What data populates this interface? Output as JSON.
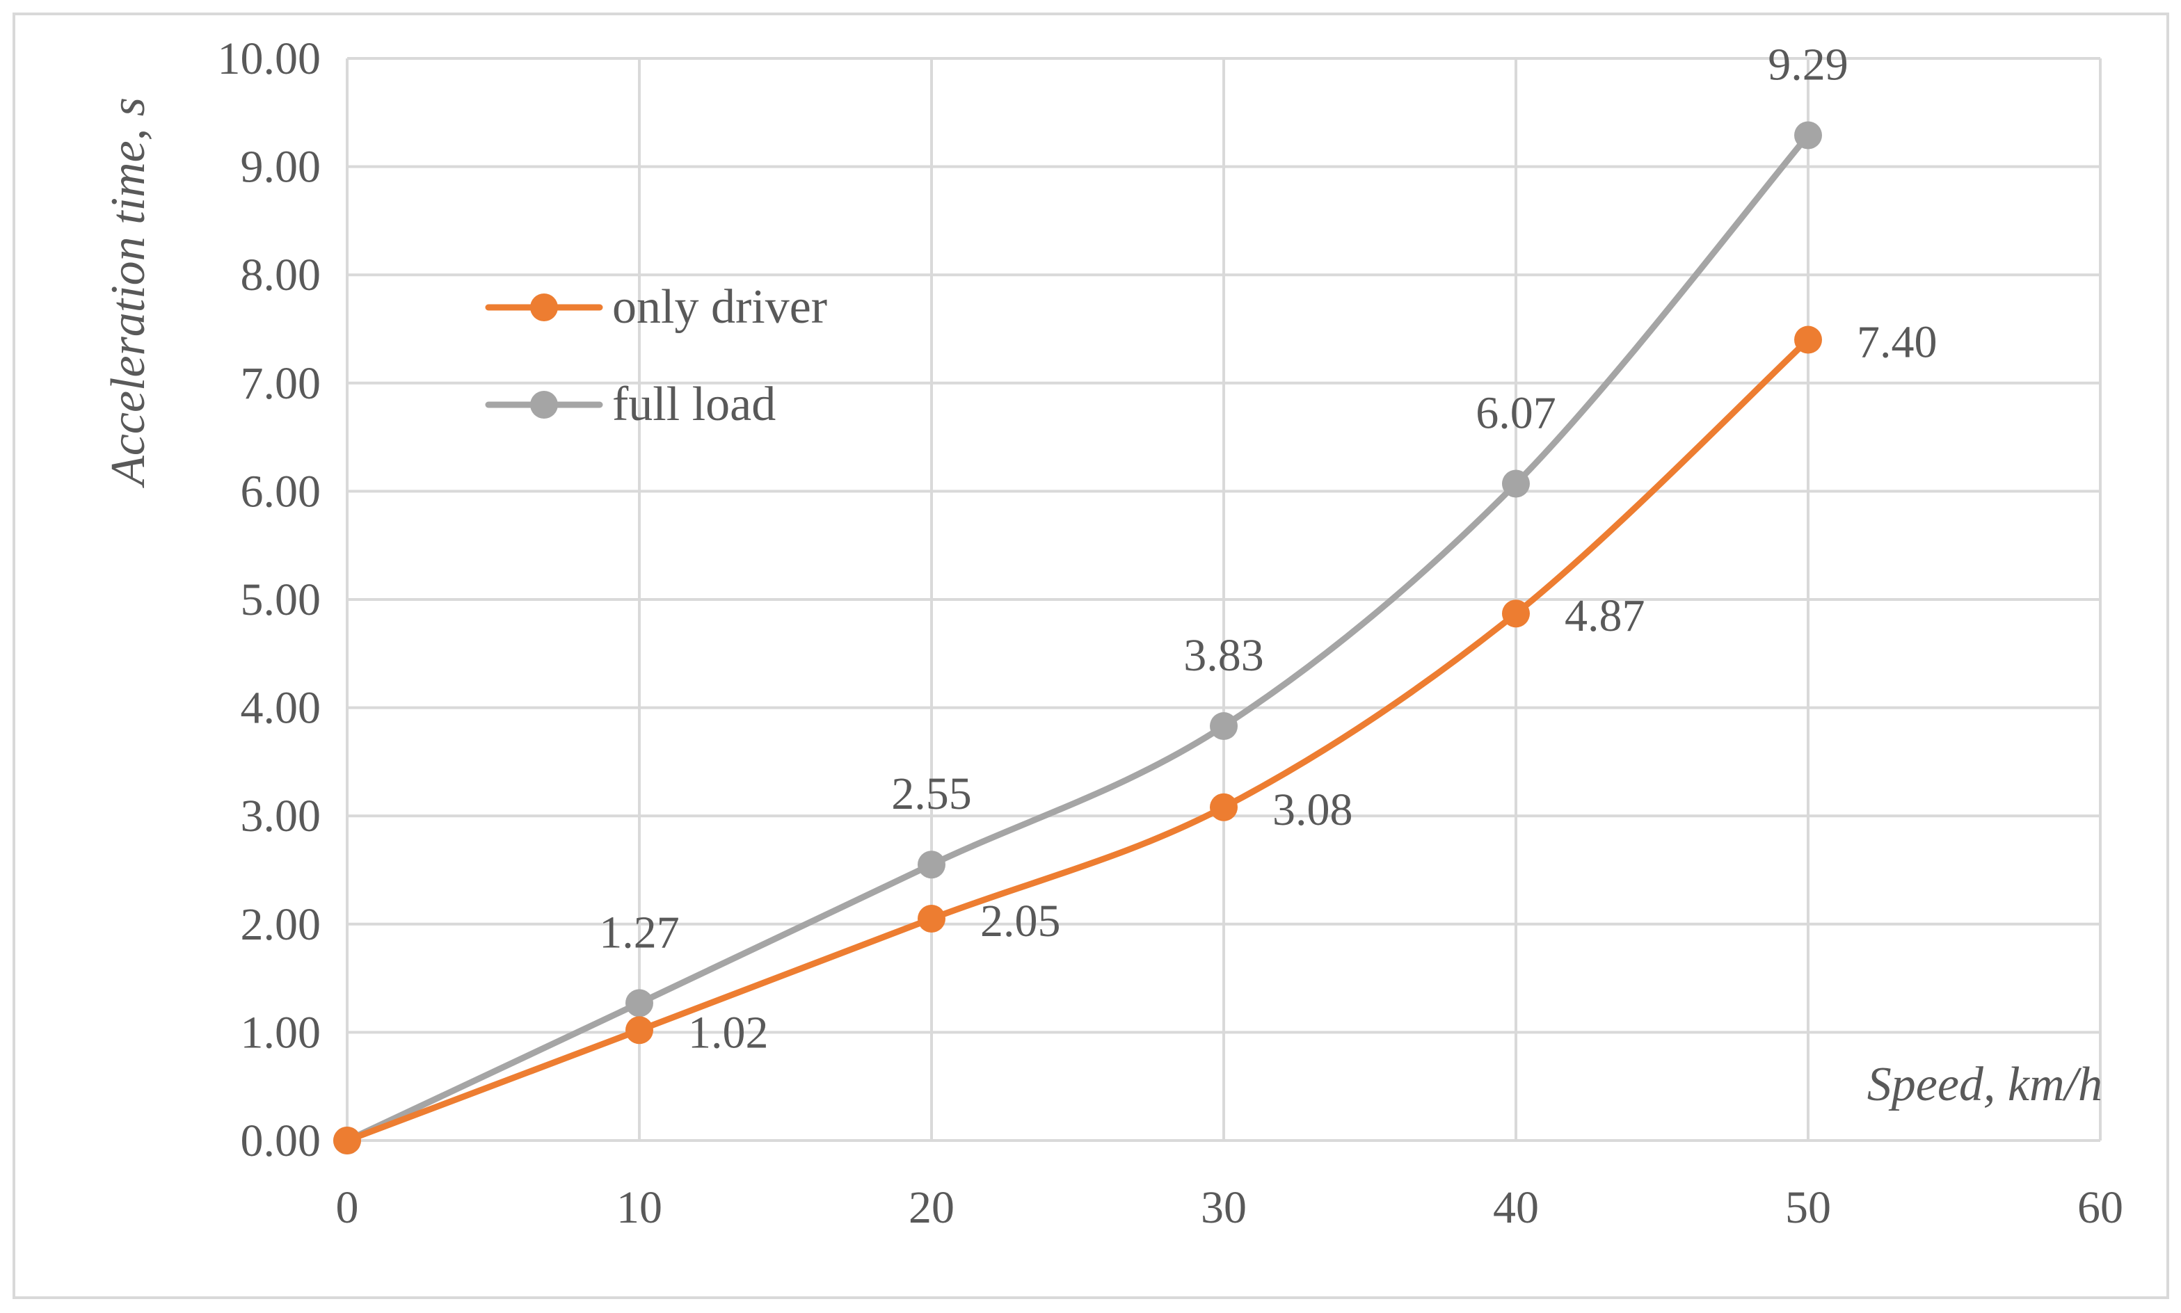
{
  "chart_data": {
    "type": "line",
    "smooth": true,
    "xlabel": "Speed, km/h",
    "ylabel": "Acceleration time, s",
    "xlim": [
      0,
      60
    ],
    "ylim": [
      0,
      10
    ],
    "x_ticks": [
      "0",
      "10",
      "20",
      "30",
      "40",
      "50",
      "60"
    ],
    "y_ticks": [
      "0.00",
      "1.00",
      "2.00",
      "3.00",
      "4.00",
      "5.00",
      "6.00",
      "7.00",
      "8.00",
      "9.00",
      "10.00"
    ],
    "grid": true,
    "legend_position": "upper-left",
    "x": [
      0,
      10,
      20,
      30,
      40,
      50
    ],
    "series": [
      {
        "name": "only driver",
        "color": "#ed7d31",
        "values": [
          0,
          1.02,
          2.05,
          3.08,
          4.87,
          7.4
        ],
        "labels": [
          "",
          "1.02",
          "2.05",
          "3.08",
          "4.87",
          "7.40"
        ],
        "label_position": "right"
      },
      {
        "name": "full load",
        "color": "#a5a5a5",
        "values": [
          0,
          1.27,
          2.55,
          3.83,
          6.07,
          9.29
        ],
        "labels": [
          "",
          "1.27",
          "2.55",
          "3.83",
          "6.07",
          "9.29"
        ],
        "label_position": "above"
      }
    ]
  }
}
